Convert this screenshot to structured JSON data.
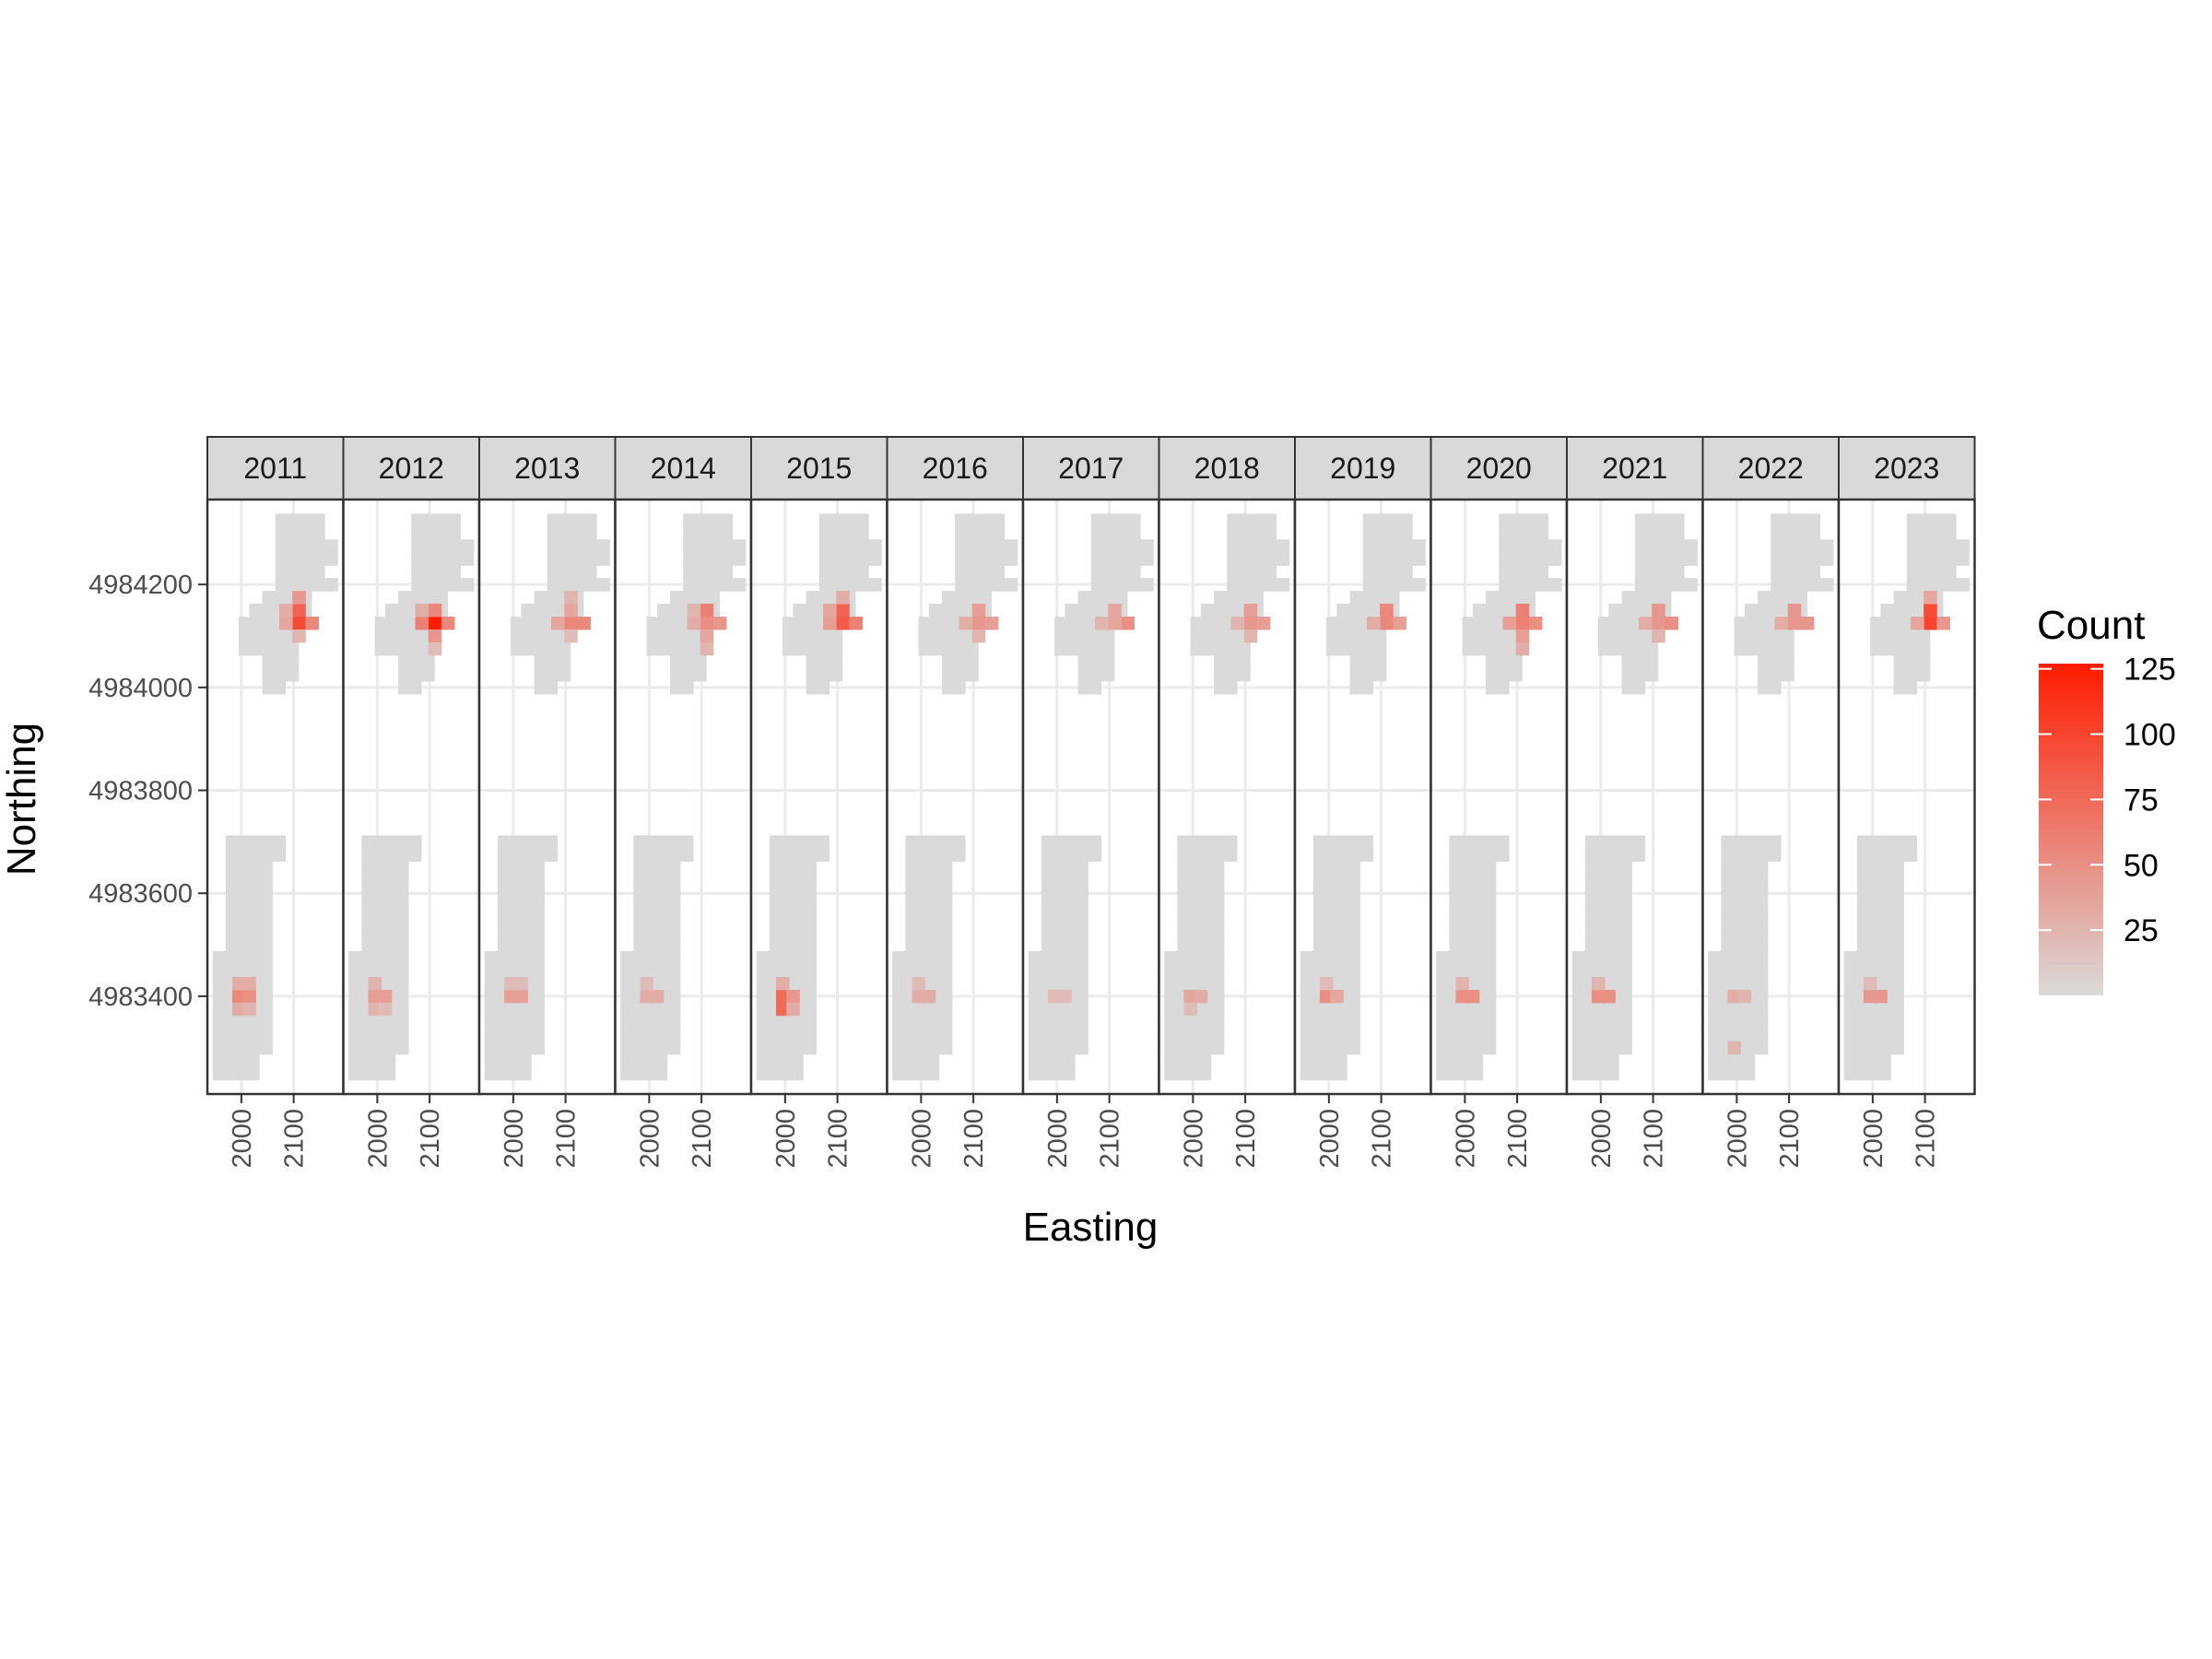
{
  "chart_data": {
    "type": "heatmap",
    "facet_by": "year",
    "facets": [
      "2011",
      "2012",
      "2013",
      "2014",
      "2015",
      "2016",
      "2017",
      "2018",
      "2019",
      "2020",
      "2021",
      "2022",
      "2023"
    ],
    "xlabel": "Easting",
    "ylabel": "Northing",
    "x_ticks": [
      2000,
      2100
    ],
    "x_tick_labels": [
      "2000",
      "2100"
    ],
    "xlim": [
      1935,
      2195
    ],
    "y_ticks": [
      4983400,
      4983600,
      4983800,
      4984000,
      4984200
    ],
    "y_tick_labels": [
      "4983400",
      "4983600",
      "4983800",
      "4984000",
      "4984200"
    ],
    "ylim": [
      4983210,
      4984365
    ],
    "cell_size": 25,
    "legend": {
      "title": "Count",
      "position": "right",
      "breaks": [
        125,
        100,
        75,
        50,
        25
      ],
      "break_labels": [
        "125",
        "100",
        "75",
        "50",
        "25"
      ],
      "min": 0,
      "max": 127,
      "color_low": "#dadada",
      "color_high": "#ff1c00"
    },
    "grid": true,
    "footprint_rows": [
      {
        "y": 4984325,
        "x_ranges": [
          [
            2065,
            2160
          ]
        ]
      },
      {
        "y": 4984300,
        "x_ranges": [
          [
            2065,
            2160
          ]
        ]
      },
      {
        "y": 4984275,
        "x_ranges": [
          [
            2065,
            2185
          ]
        ]
      },
      {
        "y": 4984250,
        "x_ranges": [
          [
            2065,
            2185
          ]
        ]
      },
      {
        "y": 4984225,
        "x_ranges": [
          [
            2065,
            2160
          ]
        ]
      },
      {
        "y": 4984200,
        "x_ranges": [
          [
            2065,
            2185
          ]
        ]
      },
      {
        "y": 4984175,
        "x_ranges": [
          [
            2040,
            2135
          ]
        ]
      },
      {
        "y": 4984150,
        "x_ranges": [
          [
            2015,
            2135
          ]
        ]
      },
      {
        "y": 4984125,
        "x_ranges": [
          [
            1995,
            2135
          ]
        ]
      },
      {
        "y": 4984100,
        "x_ranges": [
          [
            1995,
            2110
          ]
        ]
      },
      {
        "y": 4984075,
        "x_ranges": [
          [
            1995,
            2110
          ]
        ]
      },
      {
        "y": 4984050,
        "x_ranges": [
          [
            2040,
            2110
          ]
        ]
      },
      {
        "y": 4984025,
        "x_ranges": [
          [
            2040,
            2110
          ]
        ]
      },
      {
        "y": 4984000,
        "x_ranges": [
          [
            2040,
            2085
          ]
        ]
      },
      {
        "y": 4983700,
        "x_ranges": [
          [
            1970,
            2085
          ]
        ]
      },
      {
        "y": 4983675,
        "x_ranges": [
          [
            1970,
            2085
          ]
        ]
      },
      {
        "y": 4983650,
        "x_ranges": [
          [
            1970,
            2060
          ]
        ]
      },
      {
        "y": 4983625,
        "x_ranges": [
          [
            1970,
            2060
          ]
        ]
      },
      {
        "y": 4983600,
        "x_ranges": [
          [
            1970,
            2060
          ]
        ]
      },
      {
        "y": 4983575,
        "x_ranges": [
          [
            1970,
            2060
          ]
        ]
      },
      {
        "y": 4983550,
        "x_ranges": [
          [
            1970,
            2060
          ]
        ]
      },
      {
        "y": 4983525,
        "x_ranges": [
          [
            1970,
            2060
          ]
        ]
      },
      {
        "y": 4983500,
        "x_ranges": [
          [
            1970,
            2060
          ]
        ]
      },
      {
        "y": 4983475,
        "x_ranges": [
          [
            1945,
            2060
          ]
        ]
      },
      {
        "y": 4983450,
        "x_ranges": [
          [
            1945,
            2060
          ]
        ]
      },
      {
        "y": 4983425,
        "x_ranges": [
          [
            1945,
            2060
          ]
        ]
      },
      {
        "y": 4983400,
        "x_ranges": [
          [
            1945,
            2060
          ]
        ]
      },
      {
        "y": 4983375,
        "x_ranges": [
          [
            1945,
            2060
          ]
        ]
      },
      {
        "y": 4983350,
        "x_ranges": [
          [
            1945,
            2060
          ]
        ]
      },
      {
        "y": 4983325,
        "x_ranges": [
          [
            1945,
            2060
          ]
        ]
      },
      {
        "y": 4983300,
        "x_ranges": [
          [
            1945,
            2060
          ]
        ]
      },
      {
        "y": 4983275,
        "x_ranges": [
          [
            1945,
            2035
          ]
        ]
      },
      {
        "y": 4983250,
        "x_ranges": [
          [
            1945,
            2035
          ]
        ]
      }
    ],
    "highlights": [
      {
        "year": "2011",
        "cells": [
          [
            2110,
            4984150,
            80
          ],
          [
            2110,
            4984125,
            95
          ],
          [
            2135,
            4984125,
            55
          ],
          [
            2085,
            4984125,
            35
          ],
          [
            2110,
            4984175,
            45
          ],
          [
            2085,
            4984150,
            30
          ],
          [
            2110,
            4984100,
            25
          ],
          [
            1995,
            4983400,
            55
          ],
          [
            2015,
            4983400,
            50
          ],
          [
            1995,
            4983425,
            30
          ],
          [
            2015,
            4983425,
            30
          ],
          [
            1995,
            4983375,
            30
          ],
          [
            2015,
            4983375,
            25
          ]
        ]
      },
      {
        "year": "2012",
        "cells": [
          [
            2110,
            4984125,
            127
          ],
          [
            2085,
            4984125,
            60
          ],
          [
            2135,
            4984125,
            55
          ],
          [
            2110,
            4984150,
            55
          ],
          [
            2110,
            4984100,
            45
          ],
          [
            2085,
            4984150,
            30
          ],
          [
            2110,
            4984075,
            20
          ],
          [
            1995,
            4983400,
            40
          ],
          [
            2015,
            4983400,
            40
          ],
          [
            1995,
            4983425,
            25
          ],
          [
            1995,
            4983375,
            25
          ],
          [
            2015,
            4983375,
            20
          ]
        ]
      },
      {
        "year": "2013",
        "cells": [
          [
            2110,
            4984125,
            55
          ],
          [
            2135,
            4984125,
            55
          ],
          [
            2085,
            4984125,
            35
          ],
          [
            2110,
            4984150,
            35
          ],
          [
            2110,
            4984175,
            25
          ],
          [
            2110,
            4984100,
            20
          ],
          [
            1995,
            4983400,
            40
          ],
          [
            2015,
            4983400,
            40
          ],
          [
            1995,
            4983425,
            20
          ],
          [
            2015,
            4983425,
            20
          ]
        ]
      },
      {
        "year": "2014",
        "cells": [
          [
            2110,
            4984150,
            60
          ],
          [
            2110,
            4984125,
            50
          ],
          [
            2135,
            4984125,
            45
          ],
          [
            2085,
            4984125,
            30
          ],
          [
            2110,
            4984100,
            35
          ],
          [
            2085,
            4984150,
            25
          ],
          [
            2110,
            4984075,
            25
          ],
          [
            1995,
            4983400,
            30
          ],
          [
            2015,
            4983400,
            30
          ],
          [
            1995,
            4983425,
            20
          ]
        ]
      },
      {
        "year": "2015",
        "cells": [
          [
            2110,
            4984150,
            80
          ],
          [
            2110,
            4984125,
            85
          ],
          [
            2135,
            4984125,
            60
          ],
          [
            2085,
            4984125,
            40
          ],
          [
            2085,
            4984150,
            35
          ],
          [
            2110,
            4984175,
            30
          ],
          [
            1995,
            4983400,
            75
          ],
          [
            1995,
            4983375,
            75
          ],
          [
            2015,
            4983400,
            45
          ],
          [
            1995,
            4983425,
            30
          ],
          [
            2015,
            4983375,
            30
          ]
        ]
      },
      {
        "year": "2016",
        "cells": [
          [
            2110,
            4984150,
            40
          ],
          [
            2110,
            4984125,
            45
          ],
          [
            2135,
            4984125,
            40
          ],
          [
            2085,
            4984125,
            30
          ],
          [
            2110,
            4984100,
            25
          ],
          [
            1995,
            4983400,
            30
          ],
          [
            2015,
            4983400,
            30
          ],
          [
            1995,
            4983425,
            20
          ]
        ]
      },
      {
        "year": "2017",
        "cells": [
          [
            2110,
            4984150,
            35
          ],
          [
            2135,
            4984125,
            50
          ],
          [
            2110,
            4984125,
            35
          ],
          [
            2085,
            4984125,
            25
          ],
          [
            1995,
            4983400,
            20
          ],
          [
            2015,
            4983400,
            20
          ]
        ]
      },
      {
        "year": "2018",
        "cells": [
          [
            2110,
            4984150,
            40
          ],
          [
            2110,
            4984125,
            45
          ],
          [
            2135,
            4984125,
            40
          ],
          [
            2085,
            4984125,
            25
          ],
          [
            2110,
            4984100,
            25
          ],
          [
            1995,
            4983400,
            35
          ],
          [
            2015,
            4983400,
            30
          ],
          [
            1995,
            4983375,
            20
          ]
        ]
      },
      {
        "year": "2019",
        "cells": [
          [
            2110,
            4984150,
            55
          ],
          [
            2110,
            4984125,
            55
          ],
          [
            2135,
            4984125,
            40
          ],
          [
            2085,
            4984125,
            30
          ],
          [
            1995,
            4983400,
            50
          ],
          [
            2015,
            4983400,
            35
          ],
          [
            1995,
            4983425,
            20
          ]
        ]
      },
      {
        "year": "2020",
        "cells": [
          [
            2110,
            4984150,
            60
          ],
          [
            2110,
            4984125,
            60
          ],
          [
            2135,
            4984125,
            50
          ],
          [
            2085,
            4984125,
            40
          ],
          [
            2110,
            4984100,
            40
          ],
          [
            2110,
            4984075,
            30
          ],
          [
            1995,
            4983400,
            50
          ],
          [
            2015,
            4983400,
            50
          ],
          [
            1995,
            4983425,
            25
          ]
        ]
      },
      {
        "year": "2021",
        "cells": [
          [
            2110,
            4984150,
            45
          ],
          [
            2110,
            4984125,
            45
          ],
          [
            2135,
            4984125,
            50
          ],
          [
            2085,
            4984125,
            30
          ],
          [
            2110,
            4984100,
            25
          ],
          [
            1995,
            4983400,
            50
          ],
          [
            2015,
            4983400,
            50
          ],
          [
            1995,
            4983425,
            25
          ]
        ]
      },
      {
        "year": "2022",
        "cells": [
          [
            2110,
            4984150,
            45
          ],
          [
            2110,
            4984125,
            45
          ],
          [
            2135,
            4984125,
            45
          ],
          [
            2085,
            4984125,
            30
          ],
          [
            1995,
            4983400,
            30
          ],
          [
            2015,
            4983400,
            25
          ],
          [
            1995,
            4983300,
            25
          ]
        ]
      },
      {
        "year": "2023",
        "cells": [
          [
            2110,
            4984150,
            95
          ],
          [
            2110,
            4984125,
            100
          ],
          [
            2135,
            4984125,
            45
          ],
          [
            2085,
            4984125,
            35
          ],
          [
            2110,
            4984175,
            35
          ],
          [
            1995,
            4983400,
            45
          ],
          [
            2015,
            4983400,
            45
          ],
          [
            1995,
            4983425,
            20
          ]
        ]
      }
    ]
  }
}
